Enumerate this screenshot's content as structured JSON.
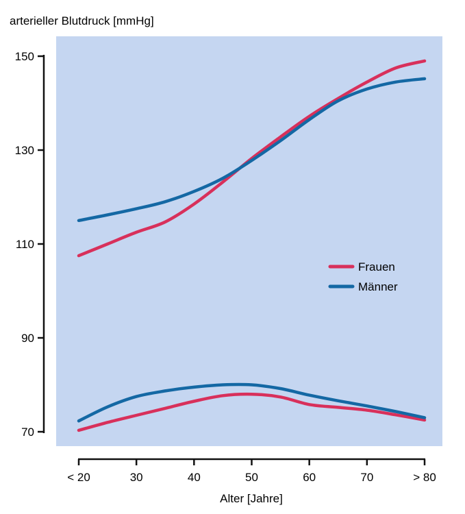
{
  "chart_data": {
    "type": "line",
    "ylabel": "arterieller Blutdruck [mmHg]",
    "xlabel": "Alter [Jahre]",
    "categories": [
      "< 20",
      "30",
      "40",
      "50",
      "60",
      "70",
      "> 80"
    ],
    "x": [
      20,
      30,
      40,
      50,
      60,
      70,
      80
    ],
    "ylim": [
      70,
      150
    ],
    "yticks": [
      "70",
      "90",
      "110",
      "130",
      "150"
    ],
    "xlim": [
      20,
      80
    ],
    "background_color": "#c5d6f1",
    "legend": {
      "placement": "right",
      "entries": [
        {
          "label": "Frauen",
          "color": "#d8305b"
        },
        {
          "label": "Männer",
          "color": "#1468a4"
        }
      ]
    },
    "series": [
      {
        "name": "Frauen",
        "color": "#d8305b",
        "group": "systolic",
        "points": [
          [
            20,
            107.5
          ],
          [
            25,
            110
          ],
          [
            30,
            112.5
          ],
          [
            35,
            114.7
          ],
          [
            40,
            118.5
          ],
          [
            45,
            123.2
          ],
          [
            50,
            128.2
          ],
          [
            55,
            132.8
          ],
          [
            60,
            137.2
          ],
          [
            65,
            141
          ],
          [
            70,
            144.5
          ],
          [
            75,
            147.5
          ],
          [
            80,
            149
          ]
        ]
      },
      {
        "name": "Männer",
        "color": "#1468a4",
        "group": "systolic",
        "points": [
          [
            20,
            115
          ],
          [
            25,
            116.2
          ],
          [
            30,
            117.5
          ],
          [
            35,
            119
          ],
          [
            40,
            121.2
          ],
          [
            45,
            124
          ],
          [
            50,
            127.8
          ],
          [
            55,
            132
          ],
          [
            60,
            136.5
          ],
          [
            65,
            140.5
          ],
          [
            70,
            143
          ],
          [
            75,
            144.5
          ],
          [
            80,
            145.2
          ]
        ]
      },
      {
        "name": "Frauen",
        "color": "#d8305b",
        "group": "diastolic",
        "points": [
          [
            20,
            70.3
          ],
          [
            25,
            72
          ],
          [
            30,
            73.5
          ],
          [
            35,
            75
          ],
          [
            40,
            76.5
          ],
          [
            45,
            77.7
          ],
          [
            50,
            78
          ],
          [
            55,
            77.4
          ],
          [
            60,
            75.8
          ],
          [
            65,
            75.2
          ],
          [
            70,
            74.6
          ],
          [
            75,
            73.6
          ],
          [
            80,
            72.5
          ]
        ]
      },
      {
        "name": "Männer",
        "color": "#1468a4",
        "group": "diastolic",
        "points": [
          [
            20,
            72.3
          ],
          [
            25,
            75.3
          ],
          [
            30,
            77.5
          ],
          [
            35,
            78.7
          ],
          [
            40,
            79.5
          ],
          [
            45,
            80
          ],
          [
            50,
            80
          ],
          [
            55,
            79.2
          ],
          [
            60,
            77.8
          ],
          [
            65,
            76.6
          ],
          [
            70,
            75.5
          ],
          [
            75,
            74.3
          ],
          [
            80,
            73
          ]
        ]
      }
    ]
  }
}
